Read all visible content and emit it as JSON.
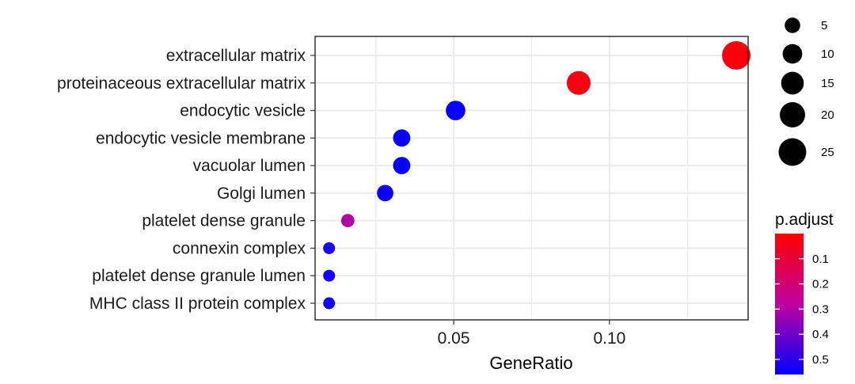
{
  "chart_data": {
    "type": "scatter",
    "xlabel": "GeneRatio",
    "ylabel": "",
    "xlim": [
      0.0055,
      0.1445
    ],
    "x_ticks": [
      {
        "value": 0.05,
        "label": "0.05"
      },
      {
        "value": 0.1,
        "label": "0.10"
      }
    ],
    "grid": true,
    "categories": [
      "extracellular matrix",
      "proteinaceous extracellular matrix",
      "endocytic vesicle",
      "endocytic vesicle membrane",
      "vacuolar lumen",
      "Golgi lumen",
      "platelet dense granule",
      "connexin complex",
      "platelet dense granule lumen",
      "MHC class II protein complex"
    ],
    "points": [
      {
        "term": "extracellular matrix",
        "gene_ratio": 0.1407,
        "count": 27,
        "p_adjust": 0.02
      },
      {
        "term": "proteinaceous extracellular matrix",
        "gene_ratio": 0.0901,
        "count": 17,
        "p_adjust": 0.03
      },
      {
        "term": "endocytic vesicle",
        "gene_ratio": 0.0506,
        "count": 10,
        "p_adjust": 0.55
      },
      {
        "term": "endocytic vesicle membrane",
        "gene_ratio": 0.0333,
        "count": 7,
        "p_adjust": 0.55
      },
      {
        "term": "vacuolar lumen",
        "gene_ratio": 0.0333,
        "count": 7,
        "p_adjust": 0.55
      },
      {
        "term": "Golgi lumen",
        "gene_ratio": 0.028,
        "count": 6,
        "p_adjust": 0.54
      },
      {
        "term": "platelet dense granule",
        "gene_ratio": 0.016,
        "count": 3,
        "p_adjust": 0.3
      },
      {
        "term": "connexin complex",
        "gene_ratio": 0.01,
        "count": 2,
        "p_adjust": 0.52
      },
      {
        "term": "platelet dense granule lumen",
        "gene_ratio": 0.01,
        "count": 2,
        "p_adjust": 0.53
      },
      {
        "term": "MHC class II protein complex",
        "gene_ratio": 0.01,
        "count": 2,
        "p_adjust": 0.54
      }
    ],
    "size_legend": {
      "title": "",
      "values": [
        5,
        10,
        15,
        20,
        25
      ],
      "labels": [
        "5",
        "10",
        "15",
        "20",
        "25"
      ]
    },
    "color_legend": {
      "title": "p.adjust",
      "range": [
        0.0,
        0.56
      ],
      "ticks": [
        {
          "value": 0.1,
          "label": "0.1"
        },
        {
          "value": 0.2,
          "label": "0.2"
        },
        {
          "value": 0.3,
          "label": "0.3"
        },
        {
          "value": 0.4,
          "label": "0.4"
        },
        {
          "value": 0.5,
          "label": "0.5"
        }
      ],
      "low_color": "#FF0000",
      "high_color": "#0000FF"
    },
    "colors": {
      "grid": "#EBEBEB",
      "panel_border": "#333333"
    }
  }
}
